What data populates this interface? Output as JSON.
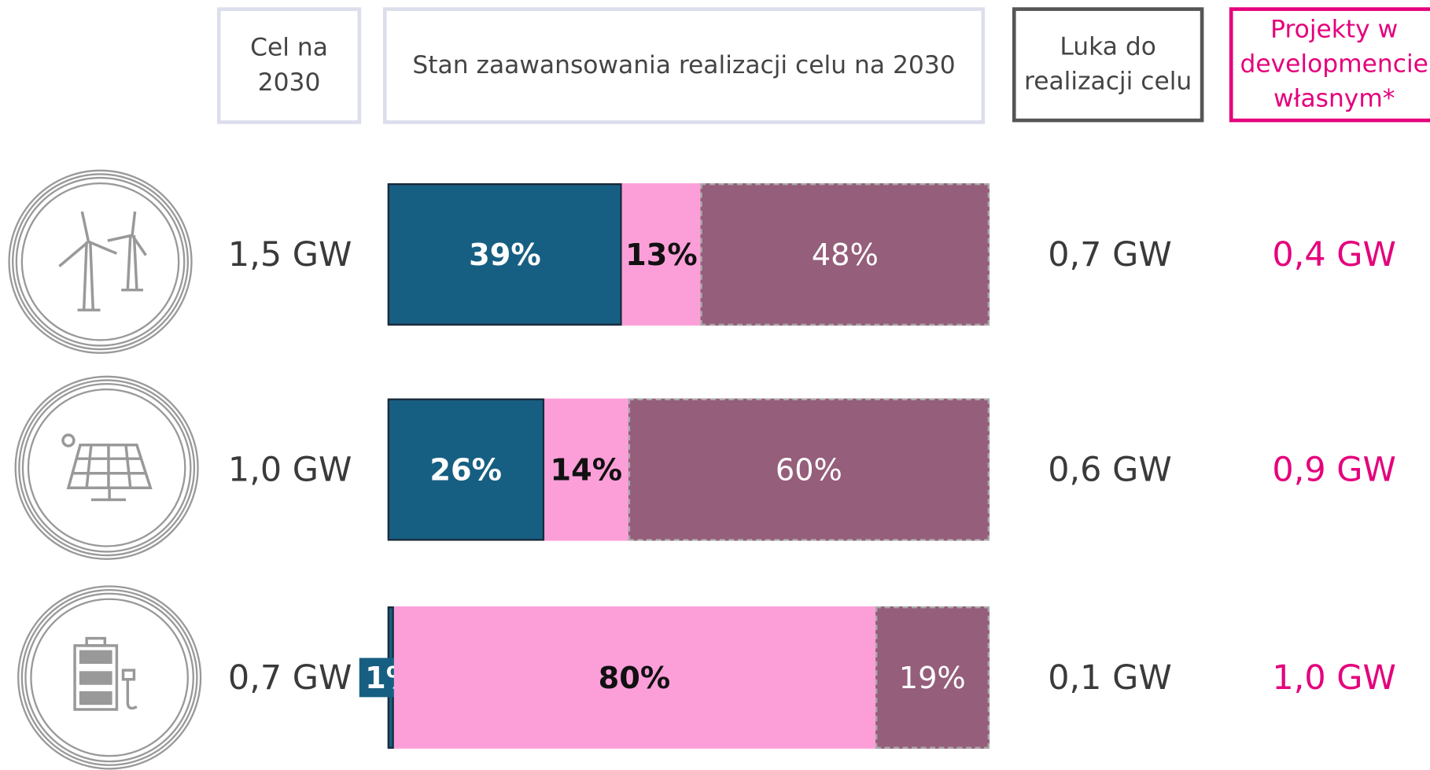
{
  "chart_data": {
    "type": "stacked_bar",
    "header": {
      "target": "Cel na 2030",
      "progress": "Stan zaawansowania realizacji celu na 2030",
      "gap": "Luka do realizacji celu",
      "projects": "Projekty w developmencie własnym*"
    },
    "targets": [
      "1,5 GW",
      "1,0 GW",
      "0,7 GW"
    ],
    "gaps": [
      "0,7 GW",
      "0,6 GW",
      "0,1 GW"
    ],
    "projects": [
      "0,4 GW",
      "0,9 GW",
      "1,0 GW"
    ],
    "xlim": [
      0,
      100
    ],
    "series": [
      {
        "color": "#175f82",
        "values": [
          39,
          26,
          1
        ],
        "value_labels": [
          "39%",
          "26%",
          "1%"
        ]
      },
      {
        "color": "#fc9fd9",
        "values": [
          13,
          14,
          80
        ],
        "value_labels": [
          "13%",
          "14%",
          "80%"
        ]
      },
      {
        "color": "#955e7a",
        "values": [
          48,
          60,
          19
        ],
        "value_labels": [
          "48%",
          "60%",
          "19%"
        ]
      }
    ]
  }
}
